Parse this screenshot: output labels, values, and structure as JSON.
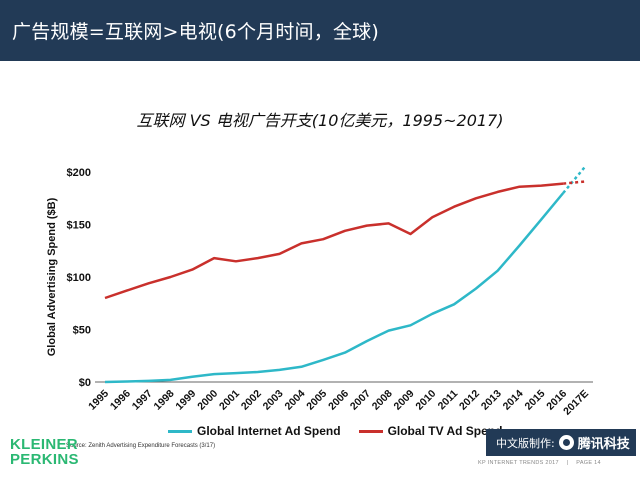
{
  "header": {
    "title": "广告规模=互联网>电视(6个月时间，全球)",
    "background": "#223a56"
  },
  "chart_data": {
    "type": "line",
    "title": "互联网 VS 电视广告开支(10亿美元，1995~2017)",
    "ylabel": "Global Advertising Spend ($B)",
    "xlabel": "",
    "categories": [
      "1995",
      "1996",
      "1997",
      "1998",
      "1999",
      "2000",
      "2001",
      "2002",
      "2003",
      "2004",
      "2005",
      "2006",
      "2007",
      "2008",
      "2009",
      "2010",
      "2011",
      "2012",
      "2013",
      "2014",
      "2015",
      "2016",
      "2017E"
    ],
    "ylim": [
      0,
      200
    ],
    "yticks": [
      0,
      50,
      100,
      150,
      200
    ],
    "ytick_labels": [
      "$0",
      "$50",
      "$100",
      "$150",
      "$200"
    ],
    "grid": false,
    "legend_position": "bottom",
    "projected_from": "2016",
    "series": [
      {
        "name": "Global Internet Ad Spend",
        "color": "#2eb8c8",
        "values": [
          0,
          0.5,
          1,
          2,
          5,
          7.5,
          8.5,
          9.5,
          11.5,
          14.5,
          21,
          28,
          39,
          49,
          54,
          65,
          74,
          89,
          106,
          130,
          155,
          180,
          205
        ]
      },
      {
        "name": "Global TV Ad Spend",
        "color": "#c9302c",
        "values": [
          80,
          87,
          94,
          100,
          107,
          118,
          115,
          118,
          122,
          132,
          136,
          144,
          149,
          151,
          141,
          157,
          167,
          175,
          181,
          186,
          187,
          189,
          191
        ]
      }
    ]
  },
  "source": "Source: Zenith Advertising Expenditure Forecasts (3/17)",
  "logo": {
    "line1": "KLEINER",
    "line2": "PERKINS",
    "color": "#2bb873"
  },
  "badge": {
    "prefix": "中文版制作:",
    "brand": "腾讯科技"
  },
  "footer": {
    "left": "KP INTERNET TRENDS 2017",
    "right": "PAGE 14"
  }
}
